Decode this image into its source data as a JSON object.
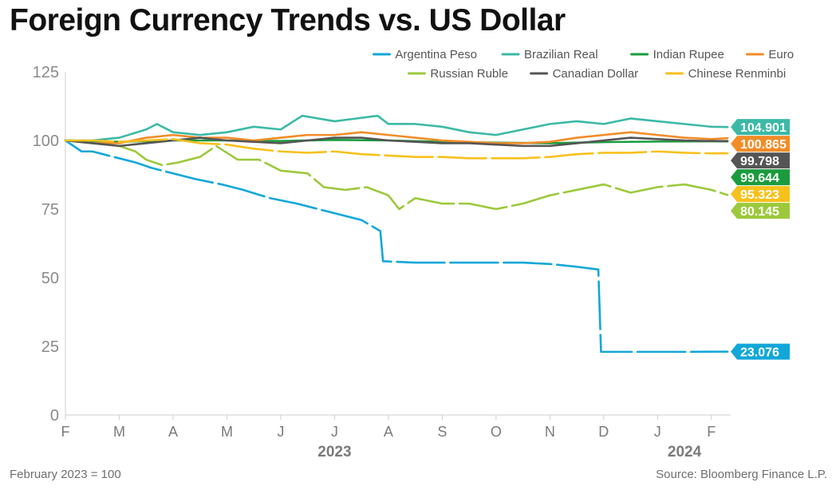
{
  "title": "Foreign Currency Trends vs. US Dollar",
  "footnote": "February 2023 = 100",
  "source": "Source: Bloomberg Finance L.P.",
  "chart_data": {
    "type": "line",
    "xlabel": "",
    "ylabel": "",
    "ylim": [
      0,
      125
    ],
    "yticks": [
      0,
      25,
      50,
      75,
      100,
      125
    ],
    "xlim": [
      0,
      12.3
    ],
    "month_ticks": [
      "F",
      "M",
      "A",
      "M",
      "J",
      "J",
      "A",
      "S",
      "O",
      "N",
      "D",
      "J",
      "F"
    ],
    "year_labels": [
      {
        "label": "2023",
        "at": 5
      },
      {
        "label": "2024",
        "at": 11.5
      }
    ],
    "legend_position": "top-right",
    "grid": false,
    "series": [
      {
        "name": "Argentina Peso",
        "color": "#12a7d8",
        "end_label": "23.076",
        "dashed": true,
        "x": [
          0,
          0.3,
          0.5,
          0.9,
          1.3,
          1.6,
          2.0,
          2.4,
          2.9,
          3.3,
          3.8,
          4.3,
          4.7,
          5.1,
          5.5,
          5.85,
          5.9,
          6.5,
          7.5,
          8.5,
          9.0,
          9.5,
          9.9,
          9.95,
          10.5,
          11.0,
          11.5,
          12.3
        ],
        "y": [
          100,
          96,
          96,
          94,
          92,
          90,
          88,
          86,
          84,
          82,
          79,
          77,
          75,
          73,
          71,
          67,
          56,
          55.5,
          55.5,
          55.5,
          55,
          54,
          53,
          23,
          23,
          23,
          23,
          23.076
        ]
      },
      {
        "name": "Brazilian Real",
        "color": "#3bb9a6",
        "end_label": "104.901",
        "x": [
          0,
          0.5,
          1.0,
          1.5,
          1.7,
          2.0,
          2.5,
          3.0,
          3.5,
          4.0,
          4.4,
          5.0,
          5.4,
          5.8,
          6.0,
          6.5,
          7.0,
          7.5,
          8.0,
          8.5,
          9.0,
          9.5,
          10.0,
          10.5,
          11.0,
          11.5,
          12.0,
          12.3
        ],
        "y": [
          100,
          100,
          101,
          104,
          106,
          103,
          102,
          103,
          105,
          104,
          109,
          107,
          108,
          109,
          106,
          106,
          105,
          103,
          102,
          104,
          106,
          107,
          106,
          108,
          107,
          106,
          105,
          104.901
        ]
      },
      {
        "name": "Indian Rupee",
        "color": "#1a9c3e",
        "end_label": "99.644",
        "x": [
          0,
          1,
          2,
          3,
          4,
          5,
          6,
          7,
          8,
          9,
          10,
          11,
          12,
          12.3
        ],
        "y": [
          100,
          99.5,
          100,
          100,
          99.8,
          100.2,
          100,
          99.5,
          99.2,
          99,
          99.4,
          99.6,
          99.7,
          99.644
        ]
      },
      {
        "name": "Euro",
        "color": "#f28c28",
        "end_label": "100.865",
        "x": [
          0,
          0.5,
          1.0,
          1.5,
          2.0,
          2.5,
          3.0,
          3.5,
          4.0,
          4.5,
          5.0,
          5.5,
          6.0,
          6.5,
          7.0,
          7.5,
          8.0,
          8.5,
          9.0,
          9.5,
          10.0,
          10.5,
          11.0,
          11.5,
          12.0,
          12.3
        ],
        "y": [
          100,
          99,
          99,
          101,
          102,
          101,
          101,
          100,
          101,
          102,
          102,
          103,
          102,
          101,
          100,
          99.5,
          99,
          99,
          99.5,
          101,
          102,
          103,
          102,
          101,
          100.5,
          100.865
        ]
      },
      {
        "name": "Russian Ruble",
        "color": "#9cc93b",
        "end_label": "80.145",
        "dashed": true,
        "x": [
          0,
          0.5,
          1.0,
          1.3,
          1.5,
          1.8,
          2.1,
          2.5,
          2.8,
          3.2,
          3.6,
          4.0,
          4.5,
          4.8,
          5.2,
          5.6,
          6.0,
          6.2,
          6.5,
          7.0,
          7.5,
          8.0,
          8.5,
          9.0,
          9.5,
          10.0,
          10.5,
          11.0,
          11.5,
          12.0,
          12.3
        ],
        "y": [
          100,
          99,
          98,
          96,
          93,
          91,
          92,
          94,
          98,
          93,
          93,
          89,
          88,
          83,
          82,
          83,
          80,
          75,
          79,
          77,
          77,
          75,
          77,
          80,
          82,
          84,
          81,
          83,
          84,
          82,
          80.145
        ]
      },
      {
        "name": "Canadian Dollar",
        "color": "#555555",
        "end_label": "99.798",
        "x": [
          0,
          1,
          1.5,
          2,
          2.5,
          3,
          3.5,
          4,
          4.5,
          5,
          5.5,
          6,
          6.5,
          7,
          7.5,
          8,
          8.5,
          9,
          9.5,
          10,
          10.5,
          11,
          11.5,
          12,
          12.3
        ],
        "y": [
          100,
          98,
          99,
          100,
          101,
          100,
          99.5,
          99,
          100,
          101,
          101,
          100,
          99.5,
          99,
          99,
          98.5,
          98,
          98,
          99,
          100,
          101,
          100.5,
          100,
          99.8,
          99.798
        ]
      },
      {
        "name": "Chinese Renminbi",
        "color": "#f7c11c",
        "end_label": "95.323",
        "dashed": true,
        "x": [
          0,
          0.5,
          1,
          1.5,
          2,
          2.5,
          3,
          3.5,
          4,
          4.5,
          5,
          5.5,
          6,
          6.5,
          7,
          7.5,
          8,
          8.5,
          9,
          9.5,
          10,
          10.5,
          11,
          11.5,
          12,
          12.3
        ],
        "y": [
          100,
          100,
          99.5,
          100,
          100.5,
          99,
          98.5,
          97,
          96,
          95.5,
          96,
          95,
          94.5,
          94,
          94,
          93.5,
          93.5,
          93.5,
          94,
          95,
          95.5,
          95.5,
          96,
          95.5,
          95.3,
          95.323
        ]
      }
    ]
  }
}
